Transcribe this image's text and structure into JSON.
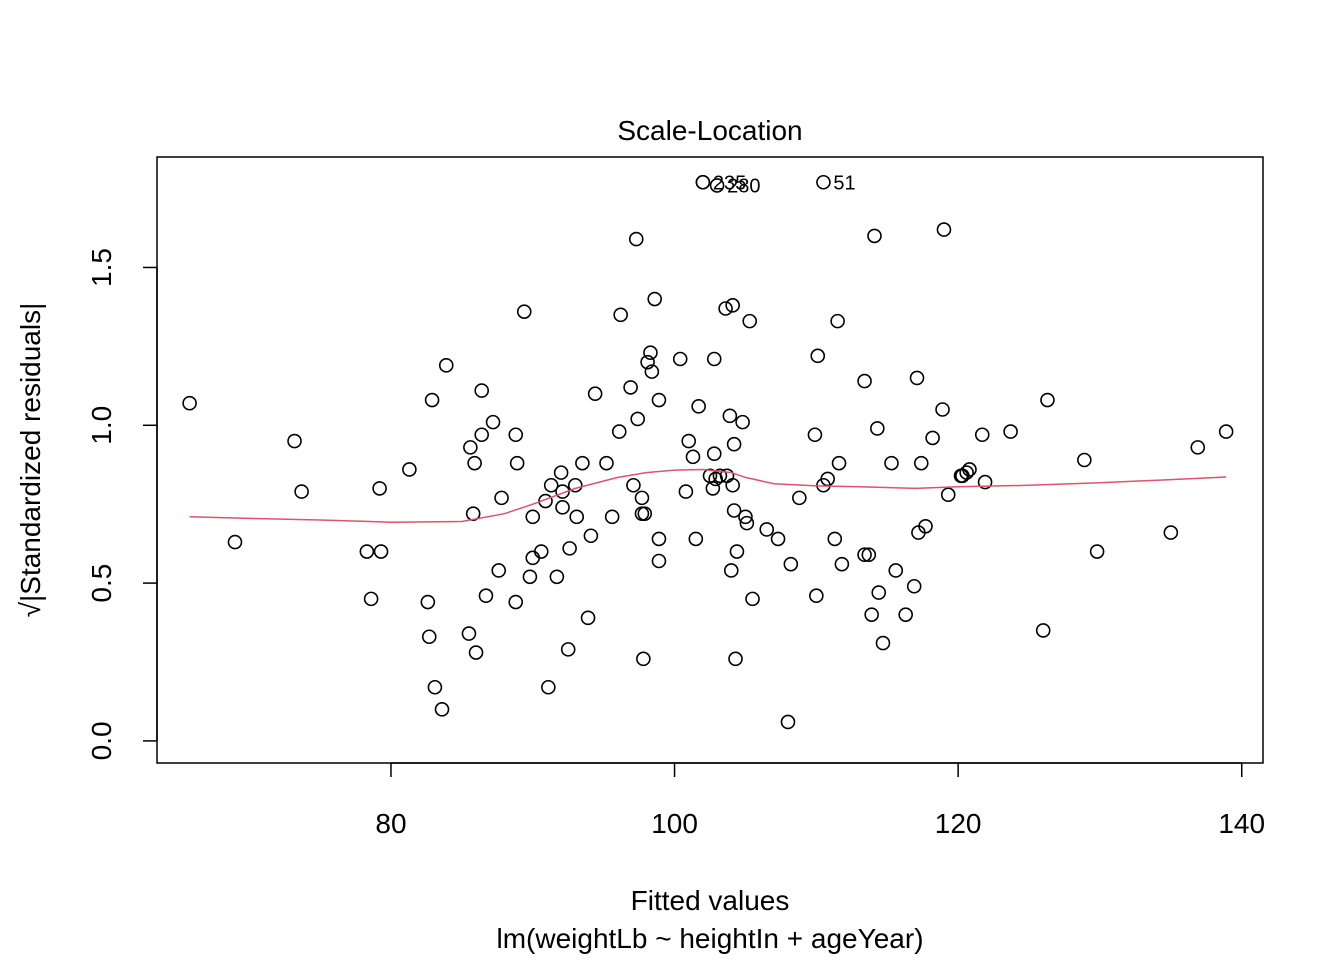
{
  "chart_data": {
    "type": "scatter",
    "title": "Scale-Location",
    "xlabel": "Fitted values",
    "xlabel2": "lm(weightLb ~ heightIn + ageYear)",
    "ylabel": "√|Standardized residuals|",
    "xlim": [
      63.5,
      141.5
    ],
    "ylim": [
      -0.07,
      1.85
    ],
    "xticks": [
      80,
      100,
      120,
      140
    ],
    "yticks": [
      0.0,
      0.5,
      1.0,
      1.5
    ],
    "ytick_labels": [
      "0.0",
      "0.5",
      "1.0",
      "1.5"
    ],
    "grid": false,
    "legend": "none",
    "colors": {
      "points": "#000000",
      "smoother": "#DF536B",
      "frame": "#000000"
    },
    "labeled_points": [
      {
        "label": "235",
        "x": 102.0,
        "y": 1.77
      },
      {
        "label": "280",
        "x": 103.0,
        "y": 1.76
      },
      {
        "label": "51",
        "x": 110.5,
        "y": 1.77
      }
    ],
    "points": [
      [
        65.8,
        1.07
      ],
      [
        69.0,
        0.63
      ],
      [
        73.2,
        0.95
      ],
      [
        73.7,
        0.79
      ],
      [
        78.3,
        0.6
      ],
      [
        78.6,
        0.45
      ],
      [
        79.2,
        0.8
      ],
      [
        79.3,
        0.6
      ],
      [
        81.3,
        0.86
      ],
      [
        82.6,
        0.44
      ],
      [
        82.7,
        0.33
      ],
      [
        82.9,
        1.08
      ],
      [
        83.1,
        0.17
      ],
      [
        83.6,
        0.1
      ],
      [
        83.9,
        1.19
      ],
      [
        85.5,
        0.34
      ],
      [
        85.6,
        0.93
      ],
      [
        85.8,
        0.72
      ],
      [
        85.9,
        0.88
      ],
      [
        86.0,
        0.28
      ],
      [
        86.4,
        0.97
      ],
      [
        86.4,
        1.11
      ],
      [
        86.7,
        0.46
      ],
      [
        87.2,
        1.01
      ],
      [
        87.6,
        0.54
      ],
      [
        87.8,
        0.77
      ],
      [
        88.8,
        0.44
      ],
      [
        88.8,
        0.97
      ],
      [
        88.9,
        0.88
      ],
      [
        89.4,
        1.36
      ],
      [
        89.8,
        0.52
      ],
      [
        90.0,
        0.71
      ],
      [
        90.0,
        0.58
      ],
      [
        90.6,
        0.6
      ],
      [
        90.9,
        0.76
      ],
      [
        91.1,
        0.17
      ],
      [
        91.3,
        0.81
      ],
      [
        91.7,
        0.52
      ],
      [
        92.0,
        0.85
      ],
      [
        92.1,
        0.79
      ],
      [
        92.1,
        0.74
      ],
      [
        92.5,
        0.29
      ],
      [
        92.6,
        0.61
      ],
      [
        93.0,
        0.81
      ],
      [
        93.1,
        0.71
      ],
      [
        93.5,
        0.88
      ],
      [
        93.9,
        0.39
      ],
      [
        94.1,
        0.65
      ],
      [
        94.4,
        1.1
      ],
      [
        95.2,
        0.88
      ],
      [
        95.6,
        0.71
      ],
      [
        96.1,
        0.98
      ],
      [
        96.2,
        1.35
      ],
      [
        96.9,
        1.12
      ],
      [
        97.1,
        0.81
      ],
      [
        97.3,
        1.59
      ],
      [
        97.4,
        1.02
      ],
      [
        97.7,
        0.77
      ],
      [
        97.7,
        0.72
      ],
      [
        97.8,
        0.26
      ],
      [
        97.9,
        0.72
      ],
      [
        98.1,
        1.2
      ],
      [
        98.3,
        1.23
      ],
      [
        98.4,
        1.17
      ],
      [
        98.6,
        1.4
      ],
      [
        98.9,
        1.08
      ],
      [
        98.9,
        0.64
      ],
      [
        98.9,
        0.57
      ],
      [
        100.4,
        1.21
      ],
      [
        100.8,
        0.79
      ],
      [
        101.0,
        0.95
      ],
      [
        101.3,
        0.9
      ],
      [
        101.5,
        0.64
      ],
      [
        101.7,
        1.06
      ],
      [
        102.0,
        1.77
      ],
      [
        102.5,
        0.84
      ],
      [
        102.7,
        0.8
      ],
      [
        102.8,
        0.91
      ],
      [
        102.8,
        1.21
      ],
      [
        102.9,
        0.83
      ],
      [
        103.2,
        0.84
      ],
      [
        103.6,
        1.37
      ],
      [
        103.7,
        0.84
      ],
      [
        103.9,
        1.03
      ],
      [
        104.0,
        0.54
      ],
      [
        104.1,
        1.38
      ],
      [
        104.1,
        0.81
      ],
      [
        104.2,
        0.73
      ],
      [
        104.2,
        0.94
      ],
      [
        104.3,
        0.26
      ],
      [
        104.4,
        0.6
      ],
      [
        104.8,
        1.01
      ],
      [
        105.0,
        0.71
      ],
      [
        105.1,
        0.69
      ],
      [
        105.3,
        1.33
      ],
      [
        105.5,
        0.45
      ],
      [
        106.5,
        0.67
      ],
      [
        107.3,
        0.64
      ],
      [
        108.0,
        0.06
      ],
      [
        108.2,
        0.56
      ],
      [
        108.8,
        0.77
      ],
      [
        109.9,
        0.97
      ],
      [
        110.0,
        0.46
      ],
      [
        110.1,
        1.22
      ],
      [
        110.5,
        0.81
      ],
      [
        110.8,
        0.83
      ],
      [
        111.3,
        0.64
      ],
      [
        111.5,
        1.33
      ],
      [
        111.6,
        0.88
      ],
      [
        111.8,
        0.56
      ],
      [
        113.4,
        1.14
      ],
      [
        113.4,
        0.59
      ],
      [
        113.7,
        0.59
      ],
      [
        113.9,
        0.4
      ],
      [
        114.1,
        1.6
      ],
      [
        114.3,
        0.99
      ],
      [
        114.4,
        0.47
      ],
      [
        114.7,
        0.31
      ],
      [
        115.3,
        0.88
      ],
      [
        115.6,
        0.54
      ],
      [
        116.3,
        0.4
      ],
      [
        116.9,
        0.49
      ],
      [
        117.1,
        1.15
      ],
      [
        117.2,
        0.66
      ],
      [
        117.4,
        0.88
      ],
      [
        117.7,
        0.68
      ],
      [
        118.2,
        0.96
      ],
      [
        118.9,
        1.05
      ],
      [
        119.0,
        1.62
      ],
      [
        119.3,
        0.78
      ],
      [
        120.2,
        0.84
      ],
      [
        120.3,
        0.84
      ],
      [
        120.6,
        0.85
      ],
      [
        120.8,
        0.86
      ],
      [
        121.7,
        0.97
      ],
      [
        121.9,
        0.82
      ],
      [
        123.7,
        0.98
      ],
      [
        126.0,
        0.35
      ],
      [
        126.3,
        1.08
      ],
      [
        128.9,
        0.89
      ],
      [
        129.8,
        0.6
      ],
      [
        135.0,
        0.66
      ],
      [
        136.9,
        0.93
      ],
      [
        138.9,
        0.98
      ]
    ],
    "smoother": [
      [
        65.8,
        0.71
      ],
      [
        70,
        0.705
      ],
      [
        75,
        0.7
      ],
      [
        80,
        0.693
      ],
      [
        85,
        0.695
      ],
      [
        88,
        0.72
      ],
      [
        90,
        0.75
      ],
      [
        93,
        0.8
      ],
      [
        96,
        0.835
      ],
      [
        98,
        0.85
      ],
      [
        100,
        0.858
      ],
      [
        102,
        0.86
      ],
      [
        104,
        0.85
      ],
      [
        105,
        0.835
      ],
      [
        107,
        0.815
      ],
      [
        110,
        0.808
      ],
      [
        113,
        0.805
      ],
      [
        117,
        0.8
      ],
      [
        120,
        0.805
      ],
      [
        125,
        0.81
      ],
      [
        130,
        0.818
      ],
      [
        135,
        0.828
      ],
      [
        138.9,
        0.836
      ]
    ]
  }
}
